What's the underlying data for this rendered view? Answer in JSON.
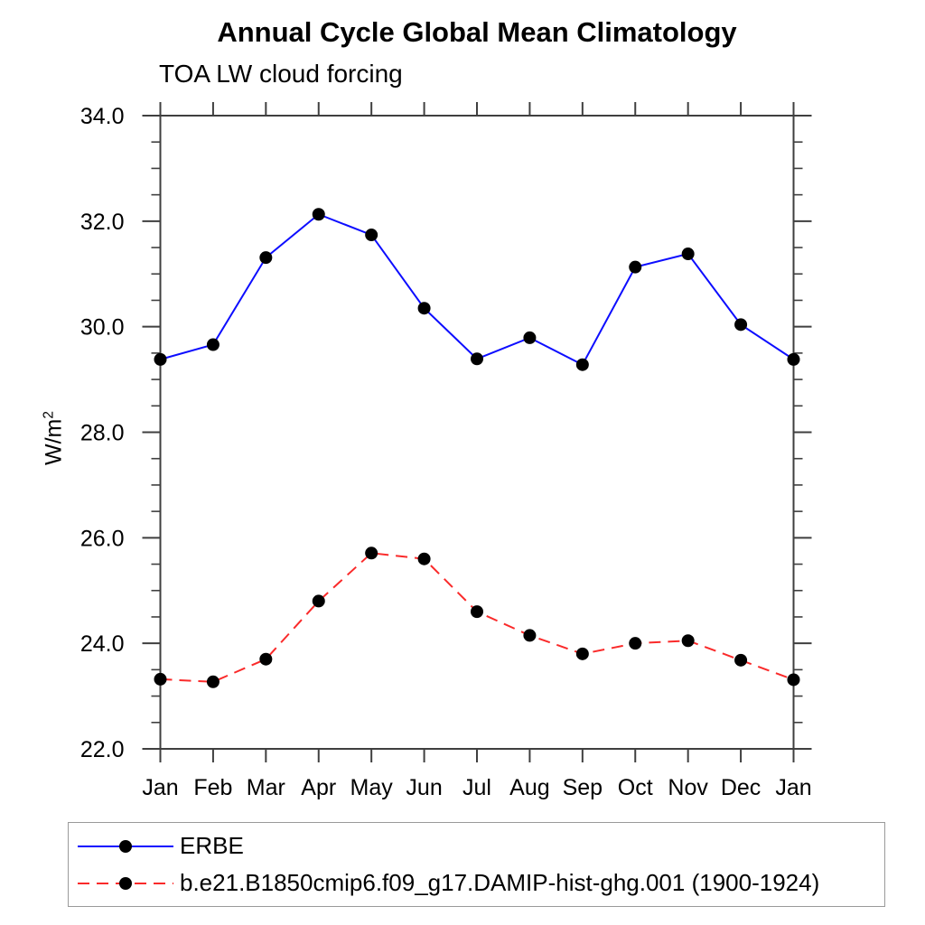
{
  "header": {
    "title": "Annual Cycle Global Mean Climatology",
    "subtitle": "TOA LW cloud forcing"
  },
  "y_axis": {
    "label_base": "W/m",
    "label_sup": "2"
  },
  "chart_data": {
    "type": "line",
    "title": "Annual Cycle Global Mean Climatology",
    "subtitle": "TOA LW cloud forcing",
    "xlabel": "",
    "ylabel": "W/m2",
    "x_tick_labels": [
      "Jan",
      "Feb",
      "Mar",
      "Apr",
      "May",
      "Jun",
      "Jul",
      "Aug",
      "Sep",
      "Oct",
      "Nov",
      "Dec",
      "Jan"
    ],
    "y_tick_labels": [
      "22.0",
      "24.0",
      "26.0",
      "28.0",
      "30.0",
      "32.0",
      "34.0"
    ],
    "ylim": [
      22.0,
      34.0
    ],
    "y_major_step": 2.0,
    "y_minor_step": 0.5,
    "grid": false,
    "legend_position": "bottom",
    "frame_color": "#3f3f3f",
    "marker_color": "#000000",
    "series": [
      {
        "name": "ERBE",
        "color": "#0d0dff",
        "style": "solid",
        "marker": "circle",
        "values": [
          29.38,
          29.66,
          31.31,
          32.13,
          31.74,
          30.35,
          29.39,
          29.79,
          29.28,
          31.13,
          31.38,
          30.04,
          29.38
        ]
      },
      {
        "name": "b.e21.B1850cmip6.f09_g17.DAMIP-hist-ghg.001 (1900-1924)",
        "color": "#fa2a2a",
        "style": "dashed",
        "marker": "circle",
        "values": [
          23.32,
          23.27,
          23.7,
          24.8,
          25.71,
          25.6,
          24.6,
          24.15,
          23.8,
          24.0,
          24.05,
          23.68,
          23.31
        ]
      }
    ]
  }
}
